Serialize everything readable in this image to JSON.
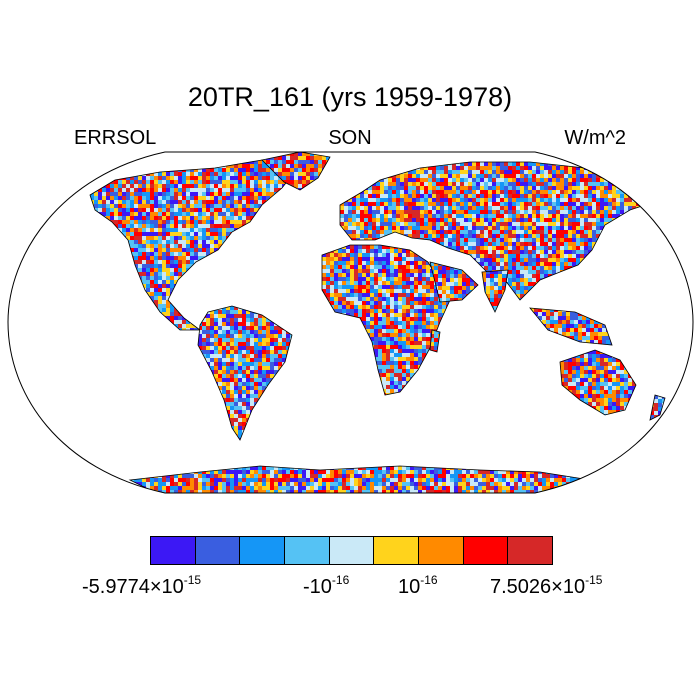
{
  "title": "20TR_161 (yrs 1959-1978)",
  "left_label": "ERRSOL",
  "center_label": "SON",
  "right_label": "W/m^2",
  "colorbar": {
    "colors": [
      "#3c18f5",
      "#3a5ee0",
      "#1596f6",
      "#55c2f4",
      "#cae9f7",
      "#ffd31c",
      "#ff8a00",
      "#ff0000",
      "#d62828"
    ],
    "labels": [
      {
        "mantissa": "-5.9774×10",
        "exponent": "-15"
      },
      {
        "mantissa": "-10",
        "exponent": "-16"
      },
      {
        "mantissa": "10",
        "exponent": "-16"
      },
      {
        "mantissa": "7.5026×10",
        "exponent": "-15"
      }
    ]
  }
}
